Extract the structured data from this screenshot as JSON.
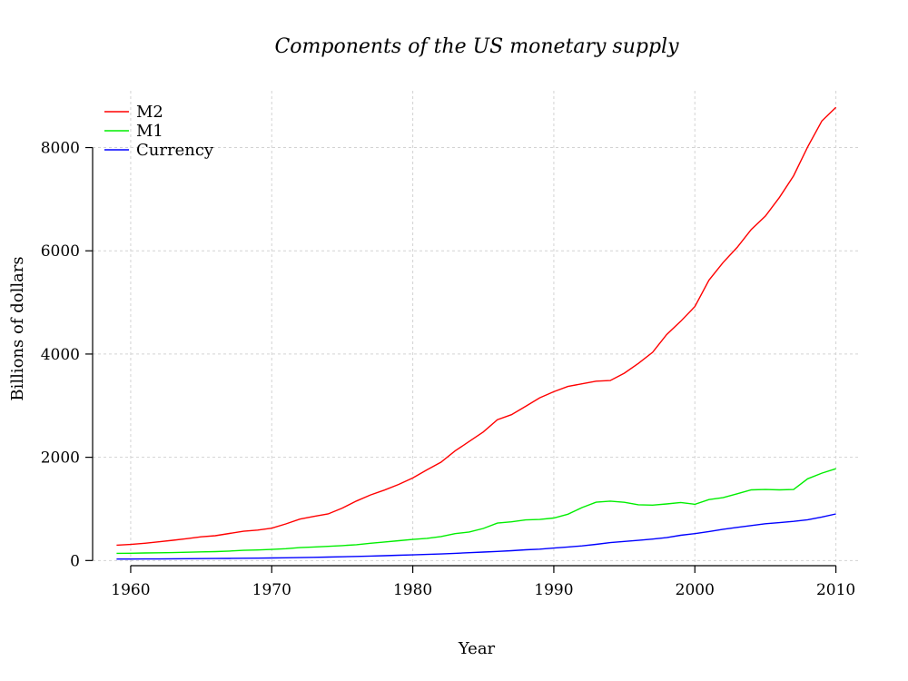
{
  "chart_data": {
    "type": "line",
    "title": "Components of the US monetary supply",
    "xlabel": "Year",
    "ylabel": "Billions of dollars",
    "xlim": [
      1957.3,
      2011.7
    ],
    "ylim": [
      -100,
      9100
    ],
    "xticks": [
      1960,
      1970,
      1980,
      1990,
      2000,
      2010
    ],
    "yticks": [
      0,
      2000,
      4000,
      6000,
      8000
    ],
    "grid": true,
    "legend_position": "top-left",
    "x": [
      1959,
      1960,
      1961,
      1962,
      1963,
      1964,
      1965,
      1966,
      1967,
      1968,
      1969,
      1970,
      1971,
      1972,
      1973,
      1974,
      1975,
      1976,
      1977,
      1978,
      1979,
      1980,
      1981,
      1982,
      1983,
      1984,
      1985,
      1986,
      1987,
      1988,
      1989,
      1990,
      1991,
      1992,
      1993,
      1994,
      1995,
      1996,
      1997,
      1998,
      1999,
      2000,
      2001,
      2002,
      2003,
      2004,
      2005,
      2006,
      2007,
      2008,
      2009,
      2010
    ],
    "series": [
      {
        "name": "M2",
        "color": "#ff0000",
        "values": [
          297,
          312,
          335,
          362,
          393,
          424,
          459,
          480,
          524,
          567,
          589,
          627,
          710,
          802,
          856,
          902,
          1016,
          1152,
          1271,
          1366,
          1474,
          1600,
          1755,
          1906,
          2124,
          2306,
          2492,
          2728,
          2826,
          2988,
          3152,
          3271,
          3372,
          3424,
          3474,
          3486,
          3630,
          3819,
          4033,
          4376,
          4636,
          4921,
          5433,
          5772,
          6068,
          6414,
          6673,
          7036,
          7453,
          8013,
          8515,
          8779
        ]
      },
      {
        "name": "M1",
        "color": "#00ee00",
        "values": [
          140,
          141,
          146,
          149,
          154,
          161,
          167,
          172,
          183,
          198,
          204,
          214,
          229,
          250,
          263,
          275,
          288,
          307,
          334,
          360,
          383,
          409,
          430,
          465,
          521,
          552,
          621,
          725,
          750,
          787,
          795,
          824,
          897,
          1025,
          1129,
          1150,
          1127,
          1081,
          1073,
          1097,
          1124,
          1089,
          1180,
          1218,
          1294,
          1369,
          1376,
          1368,
          1375,
          1584,
          1693,
          1779
        ]
      },
      {
        "name": "Currency",
        "color": "#0000ff",
        "values": [
          28,
          29,
          30,
          31,
          33,
          35,
          37,
          39,
          41,
          44,
          46,
          49,
          53,
          57,
          62,
          67,
          72,
          79,
          86,
          94,
          102,
          110,
          118,
          127,
          139,
          151,
          163,
          176,
          191,
          207,
          220,
          241,
          262,
          283,
          313,
          347,
          370,
          390,
          415,
          444,
          490,
          521,
          562,
          606,
          642,
          677,
          712,
          733,
          758,
          790,
          843,
          902
        ]
      }
    ]
  }
}
